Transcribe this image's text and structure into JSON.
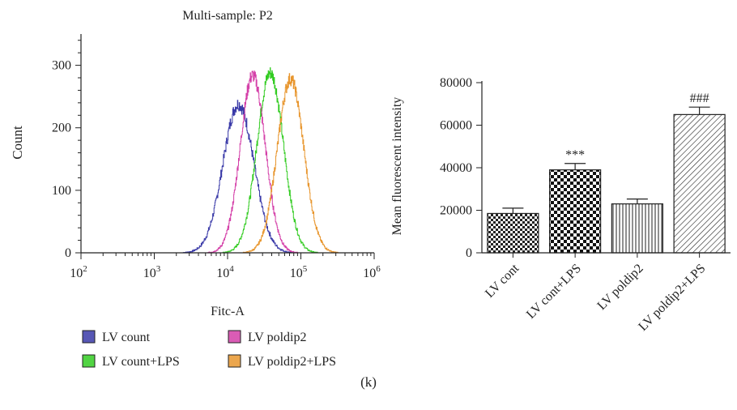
{
  "caption": "(k)",
  "chart_data": [
    {
      "type": "line",
      "title": "Multi-sample: P2",
      "xlabel": "Fitc-A",
      "ylabel": "Count",
      "xscale": "log",
      "xlim": [
        100,
        1000000
      ],
      "ylim": [
        0,
        350
      ],
      "xticks": [
        {
          "value": 100,
          "base": "10",
          "exp": "2"
        },
        {
          "value": 1000,
          "base": "10",
          "exp": "3"
        },
        {
          "value": 10000,
          "base": "10",
          "exp": "4"
        },
        {
          "value": 100000,
          "base": "10",
          "exp": "5"
        },
        {
          "value": 1000000,
          "base": "10",
          "exp": "6"
        }
      ],
      "yticks": [
        0,
        100,
        200,
        300
      ],
      "legend_position": "bottom",
      "series": [
        {
          "name": "LV count",
          "color": "#3a3aa8",
          "fill": "#3a3aa8",
          "peak_x": 14000,
          "peak_y": 238,
          "width_decades": 0.21
        },
        {
          "name": "LV count+LPS",
          "color": "#33cc22",
          "fill": "#33cc22",
          "peak_x": 38000,
          "peak_y": 288,
          "width_decades": 0.18
        },
        {
          "name": "LV poldip2",
          "color": "#d43fa8",
          "fill": "#d43fa8",
          "peak_x": 22000,
          "peak_y": 284,
          "width_decades": 0.17
        },
        {
          "name": "LV poldip2+LPS",
          "color": "#e8962e",
          "fill": "#e8962e",
          "peak_x": 72000,
          "peak_y": 278,
          "width_decades": 0.18
        }
      ]
    },
    {
      "type": "bar",
      "title": "",
      "ylabel": "Mean fluorescent intensity",
      "ylim": [
        0,
        80000
      ],
      "yticks": [
        0,
        20000,
        40000,
        60000,
        80000
      ],
      "categories": [
        "LV cont",
        "LV cont+LPS",
        "LV poldip2",
        "LV poldip2+LPS"
      ],
      "values": [
        18500,
        39000,
        23000,
        65000
      ],
      "errors": [
        2500,
        3000,
        2300,
        3500
      ],
      "patterns": [
        "checker-small",
        "checker-large",
        "vertical",
        "diagonal"
      ],
      "annotations": [
        "",
        "***",
        "",
        "###"
      ]
    }
  ]
}
